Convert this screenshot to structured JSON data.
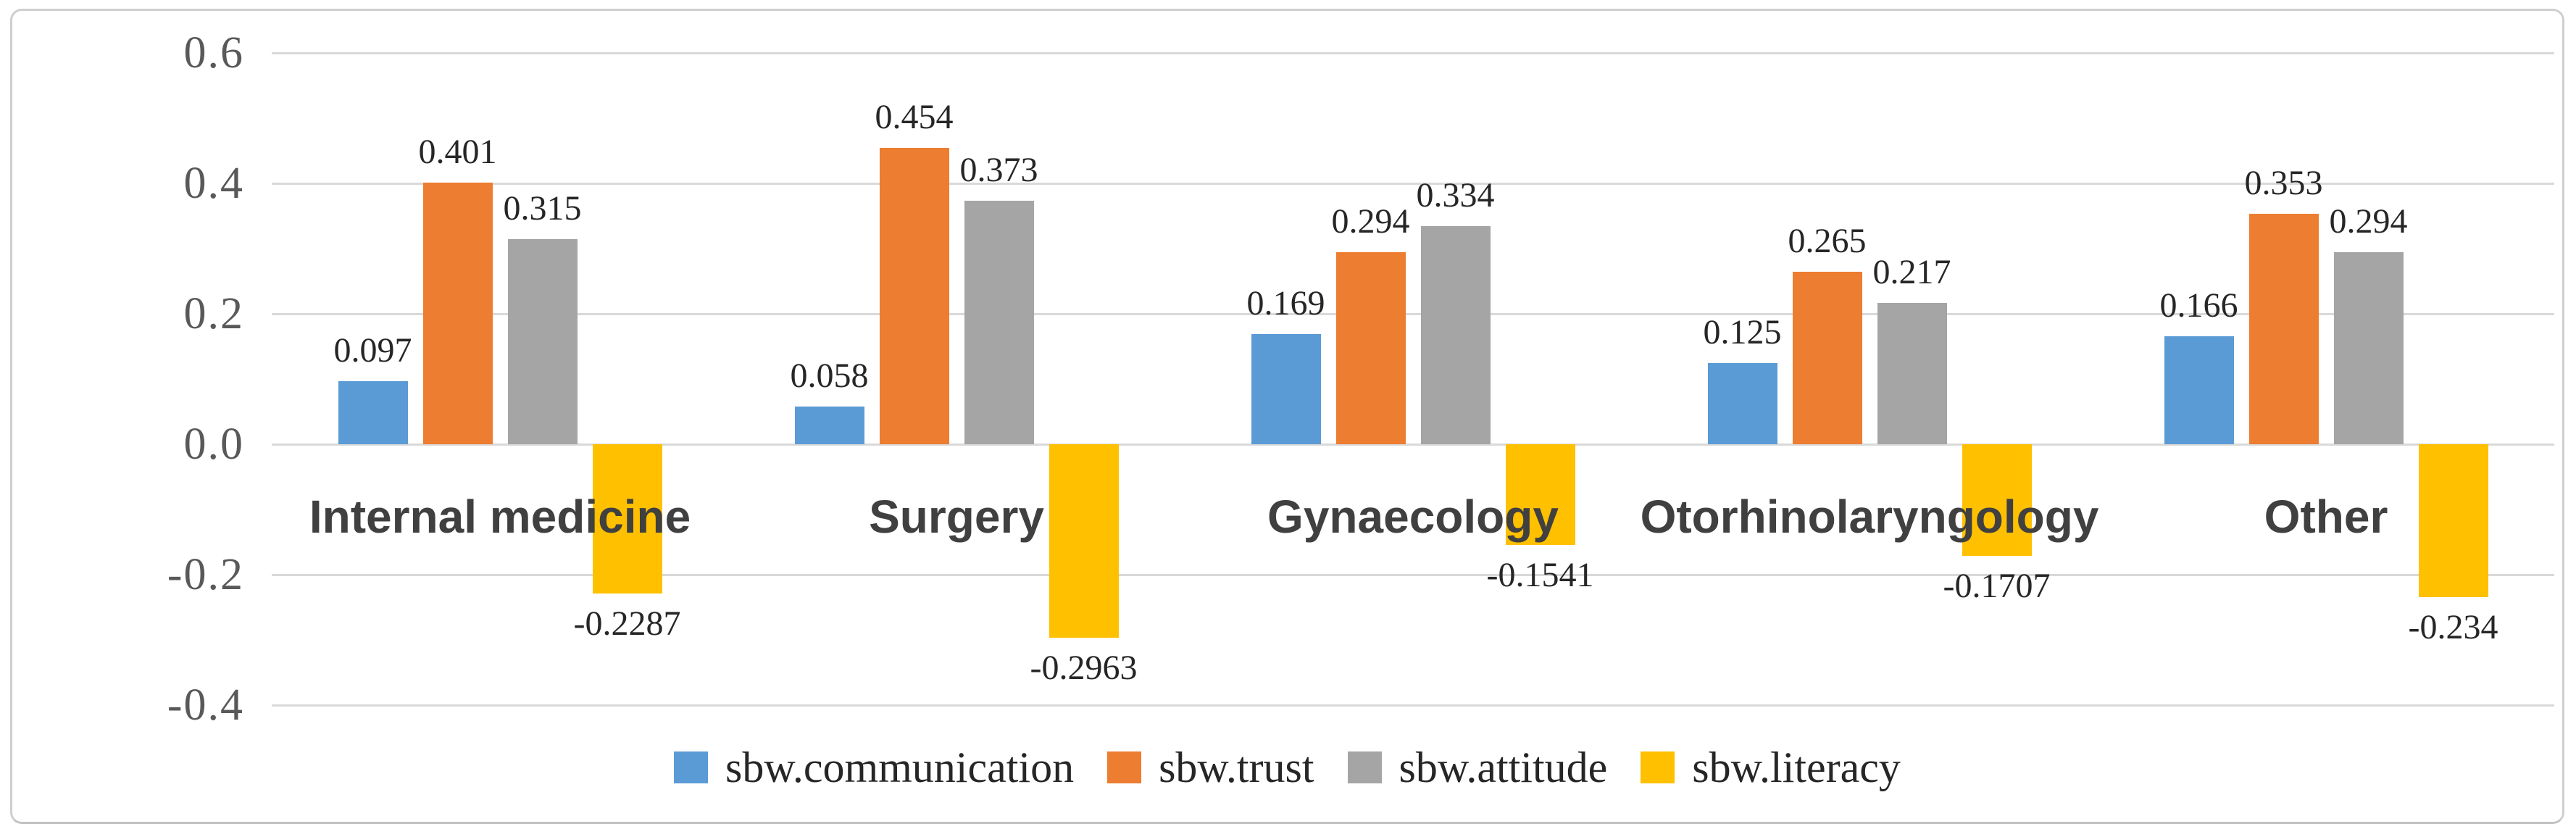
{
  "chart_data": {
    "type": "bar",
    "title": "",
    "xlabel": "",
    "ylabel": "",
    "categories": [
      "Internal medicine",
      "Surgery",
      "Gynaecology",
      "Otorhinolaryngology",
      "Other"
    ],
    "series": [
      {
        "name": "sbw.communication",
        "color": "#5B9BD5",
        "values": [
          0.097,
          0.058,
          0.169,
          0.125,
          0.166
        ],
        "labels": [
          "0.097",
          "0.058",
          "0.169",
          "0.125",
          "0.166"
        ]
      },
      {
        "name": "sbw.trust",
        "color": "#ED7D31",
        "values": [
          0.401,
          0.454,
          0.294,
          0.265,
          0.353
        ],
        "labels": [
          "0.401",
          "0.454",
          "0.294",
          "0.265",
          "0.353"
        ]
      },
      {
        "name": "sbw.attitude",
        "color": "#A5A5A5",
        "values": [
          0.315,
          0.373,
          0.334,
          0.217,
          0.294
        ],
        "labels": [
          "0.315",
          "0.373",
          "0.334",
          "0.217",
          "0.294"
        ]
      },
      {
        "name": "sbw.literacy",
        "color": "#FFC000",
        "values": [
          -0.2287,
          -0.2963,
          -0.1541,
          -0.1707,
          -0.234
        ],
        "labels": [
          "-0.2287",
          "-0.2963",
          "-0.1541",
          "-0.1707",
          "-0.234"
        ]
      }
    ],
    "y_axis": {
      "range": [
        -0.4,
        0.6
      ],
      "tick_step": 0.2,
      "ticks": [
        {
          "value": 0.6,
          "label": "0.6"
        },
        {
          "value": 0.4,
          "label": "0.4"
        },
        {
          "value": 0.2,
          "label": "0.2"
        },
        {
          "value": 0.0,
          "label": "0.0"
        },
        {
          "value": -0.2,
          "label": "-0.2"
        },
        {
          "value": -0.4,
          "label": "-0.4"
        }
      ],
      "gridlines": true
    },
    "legend": {
      "position": "bottom",
      "entries": [
        "sbw.communication",
        "sbw.trust",
        "sbw.attitude",
        "sbw.literacy"
      ]
    },
    "styles": {
      "gridline_color": "#D9D9D9",
      "tick_label_color": "#595959",
      "data_label_color": "#262626",
      "category_label_color": "#404040",
      "legend_text_color": "#262626",
      "frame_border_color": "#CFCFCF",
      "background_color": "#FFFFFF"
    }
  }
}
